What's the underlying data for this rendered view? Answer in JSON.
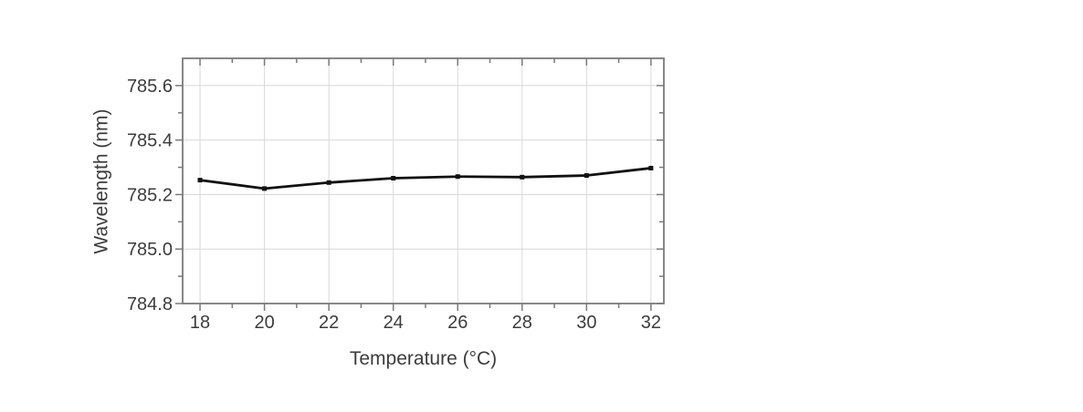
{
  "page": {
    "background": "#ffffff"
  },
  "chart_data": {
    "type": "line",
    "title": "",
    "xlabel": "Temperature (°C)",
    "ylabel": "Wavelength (nm)",
    "x": [
      18,
      20,
      22,
      24,
      26,
      28,
      30,
      32
    ],
    "series": [
      {
        "name": "Wavelength",
        "values": [
          785.253,
          785.222,
          785.244,
          785.26,
          785.266,
          785.264,
          785.27,
          785.297
        ]
      }
    ],
    "xlim": [
      17.46,
      32.4
    ],
    "ylim": [
      784.8,
      785.7
    ],
    "x_major_ticks": {
      "values": [
        18,
        20,
        22,
        24,
        26,
        28,
        30,
        32
      ],
      "labels": [
        "18",
        "20",
        "22",
        "24",
        "26",
        "28",
        "30",
        "32"
      ]
    },
    "x_minor_ticks": [
      19,
      21,
      23,
      25,
      27,
      29,
      31
    ],
    "y_major_ticks": {
      "values": [
        784.8,
        785.0,
        785.2,
        785.4,
        785.6
      ],
      "labels": [
        "784.8",
        "785.0",
        "785.2",
        "785.4",
        "785.6"
      ]
    },
    "y_minor_ticks": [
      784.9,
      785.1,
      785.3,
      785.5
    ],
    "grid": "major",
    "legend": "none",
    "marker": "square",
    "colors": {
      "line": "#111111",
      "marker": "#111111",
      "grid": "#d8d8d8",
      "frame": "#7a7a7a",
      "tick": "#7a7a7a",
      "text": "#3c3c3c"
    }
  }
}
